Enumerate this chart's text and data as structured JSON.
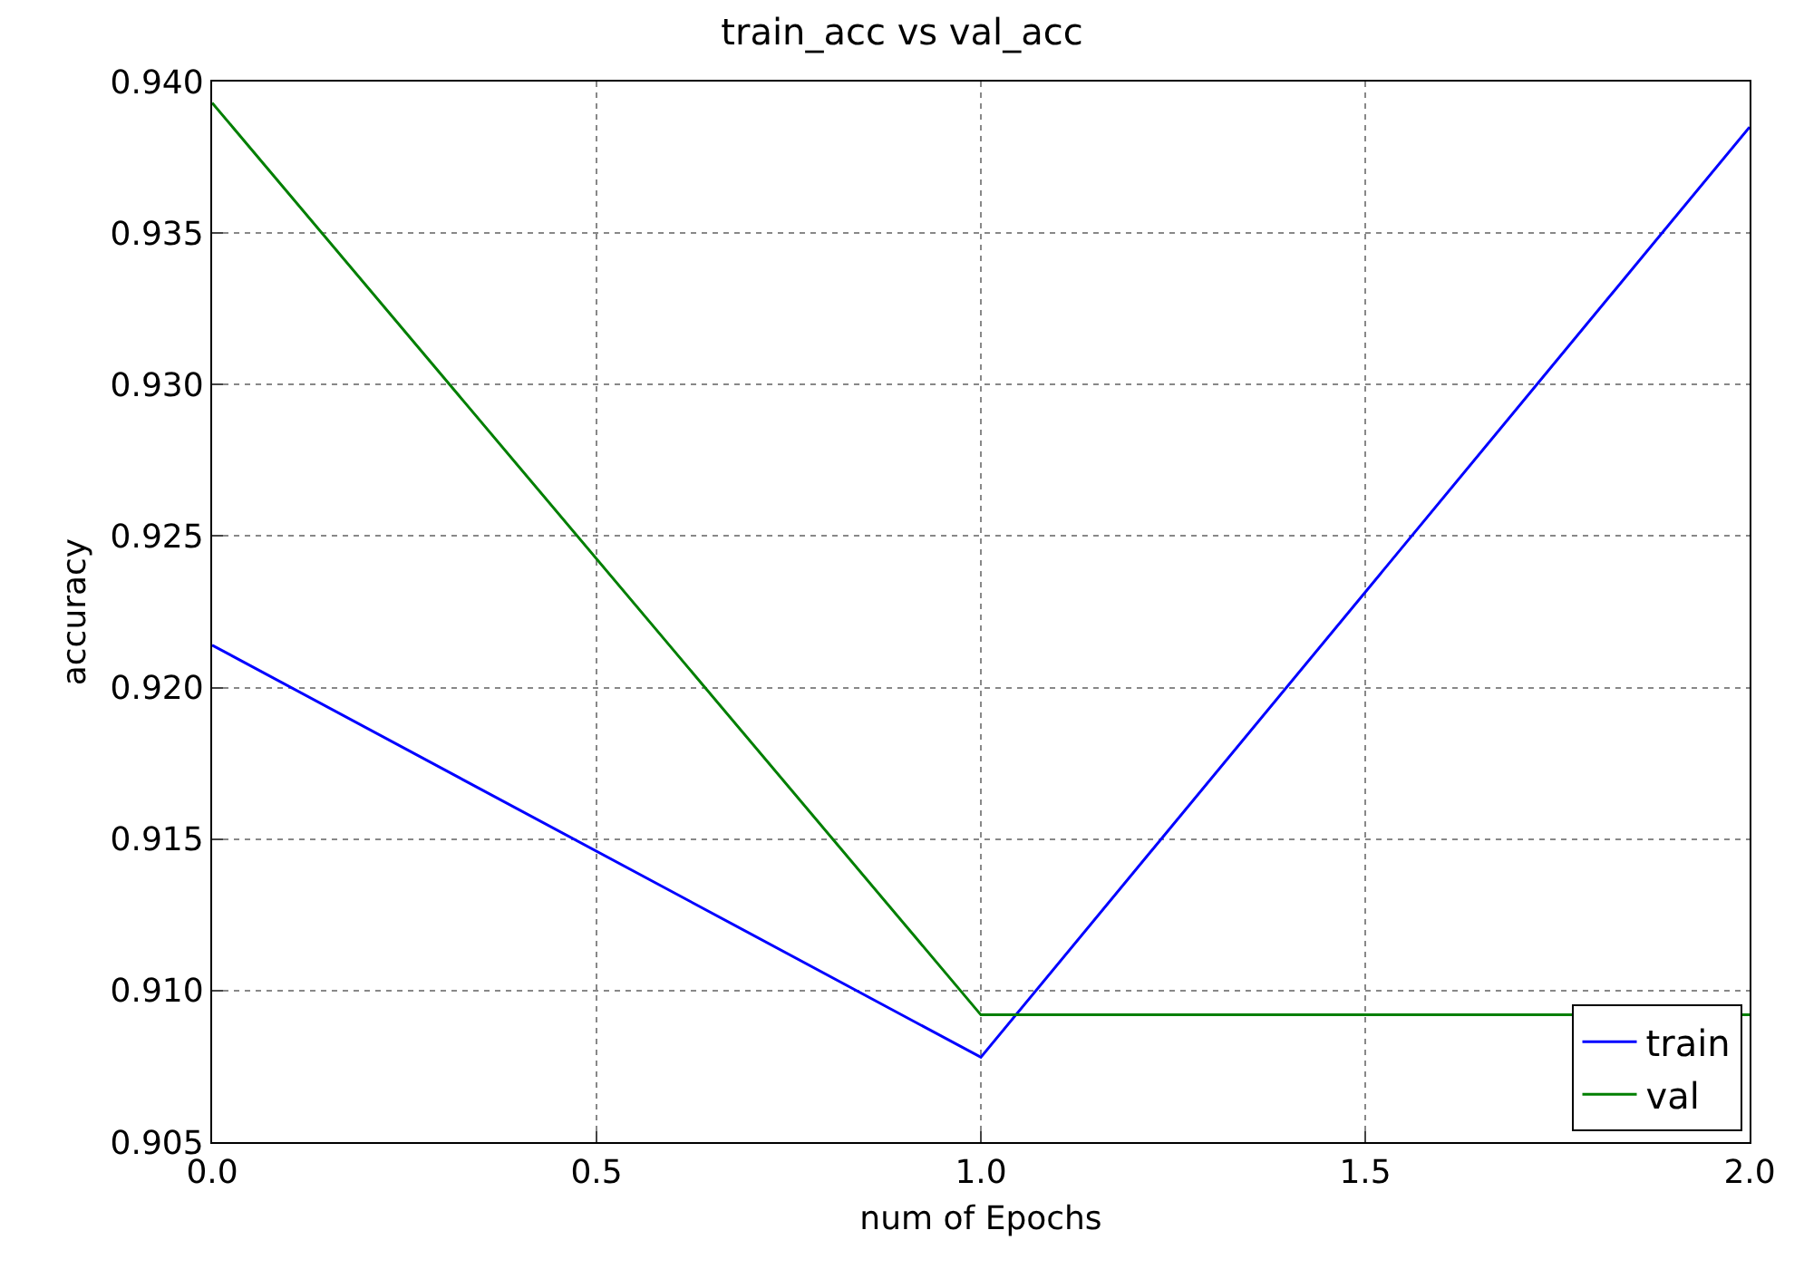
{
  "chart_data": {
    "type": "line",
    "title": "train_acc vs val_acc",
    "xlabel": "num of Epochs",
    "ylabel": "accuracy",
    "x": [
      0,
      1,
      2
    ],
    "series": [
      {
        "name": "train",
        "color": "#0000ff",
        "values": [
          0.9214,
          0.9078,
          0.9385
        ]
      },
      {
        "name": "val",
        "color": "#007f00",
        "values": [
          0.9393,
          0.9092,
          0.9092
        ]
      }
    ],
    "xlim": [
      0,
      2
    ],
    "xticks": [
      {
        "value": 0,
        "label": "0.0"
      },
      0.5,
      {
        "value": 1,
        "label": "1.0"
      },
      1.5,
      {
        "value": 2,
        "label": "2.0"
      }
    ],
    "ylim": [
      0.905,
      0.94
    ],
    "yticks": [
      {
        "value": 0.905,
        "label": "0.905"
      },
      {
        "value": 0.91,
        "label": "0.910"
      },
      {
        "value": 0.915,
        "label": "0.915"
      },
      {
        "value": 0.92,
        "label": "0.920"
      },
      {
        "value": 0.925,
        "label": "0.925"
      },
      {
        "value": 0.93,
        "label": "0.930"
      },
      {
        "value": 0.935,
        "label": "0.935"
      },
      {
        "value": 0.94,
        "label": "0.940"
      }
    ],
    "grid": true,
    "legend": "bottom right",
    "line_style": "solid",
    "marker": "none"
  }
}
